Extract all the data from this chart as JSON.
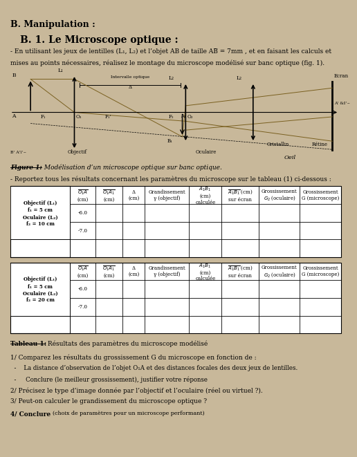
{
  "bg_color": "#c8b89a",
  "title_b": "B. Manipulation :",
  "title_b1": "B. 1. Le Microscope optique :",
  "fig_caption_prefix": "Figure 1:",
  "fig_caption_rest": " Modélisation d’un microscope optique sur banc optique.",
  "report_line": "- Reportez tous les résultats concernant les paramètres du microscope sur le tableau (1) ci-dessous :",
  "tableau_caption_prefix": "Tableau 1:",
  "tableau_caption_rest": " Résultats des paramètres du microscope modélisé",
  "q1": "1/ Comparez les résultats du grossissement G du microscope en fonction de :",
  "q1a": "  -    La distance d’observation de l’objet O₁A et des distances focales des deux jeux de lentilles.",
  "q1b": "  -     Conclure (le meilleur grossissement), justifier votre réponse",
  "q2": "2/ Précisez le type d’image donnée par l’objectif et l’oculaire (réel ou virtuel ?).",
  "q3": "3/ Peut-on calculer le grandissement du microscope optique ?",
  "q4_bold": "4/ Conclure ",
  "q4_rest": "(choix de paramètres pour un microscope performant)"
}
